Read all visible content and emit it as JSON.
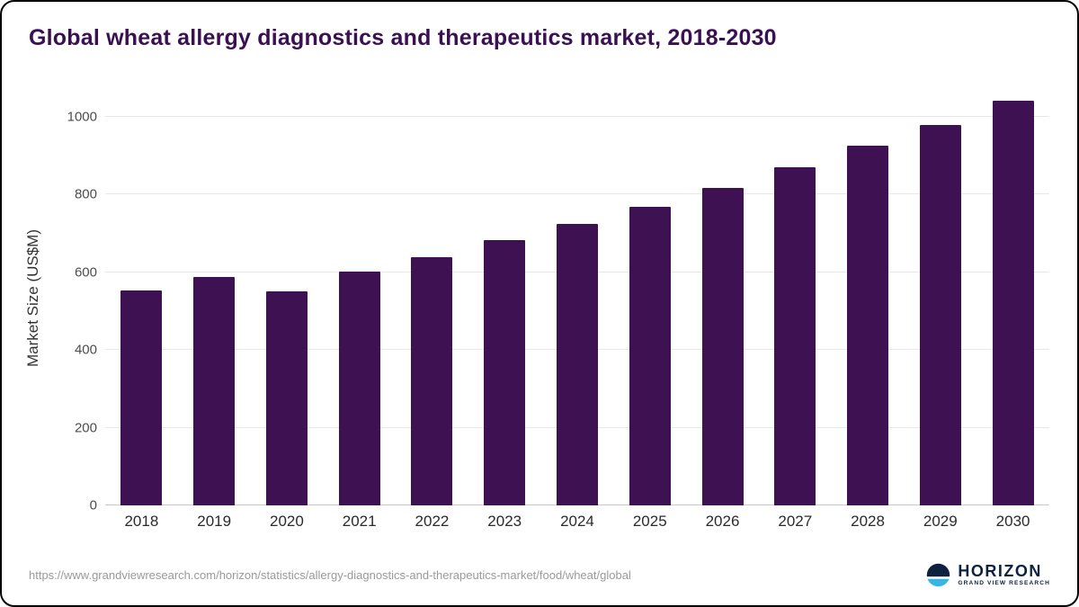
{
  "chart_data": {
    "type": "bar",
    "title": "Global wheat allergy diagnostics and therapeutics market, 2018-2030",
    "categories": [
      "2018",
      "2019",
      "2020",
      "2021",
      "2022",
      "2023",
      "2024",
      "2025",
      "2026",
      "2027",
      "2028",
      "2029",
      "2030"
    ],
    "values": [
      553,
      588,
      550,
      601,
      640,
      682,
      725,
      769,
      818,
      870,
      925,
      980,
      1043
    ],
    "xlabel": "",
    "ylabel": "Market Size (US$M)",
    "ylim": [
      0,
      1000
    ],
    "yticks": [
      0,
      200,
      400,
      600,
      800,
      1000
    ],
    "bar_color": "#3d1152",
    "grid": "horizontal",
    "legend": "none"
  },
  "footer": {
    "source_url": "https://www.grandviewresearch.com/horizon/statistics/allergy-diagnostics-and-therapeutics-market/food/wheat/global",
    "brand_name": "HORIZON",
    "brand_tagline": "GRAND VIEW RESEARCH"
  },
  "colors": {
    "title": "#3b1053",
    "bar": "#3d1152",
    "logo_navy": "#0d2240",
    "logo_blue": "#35b7e5"
  }
}
